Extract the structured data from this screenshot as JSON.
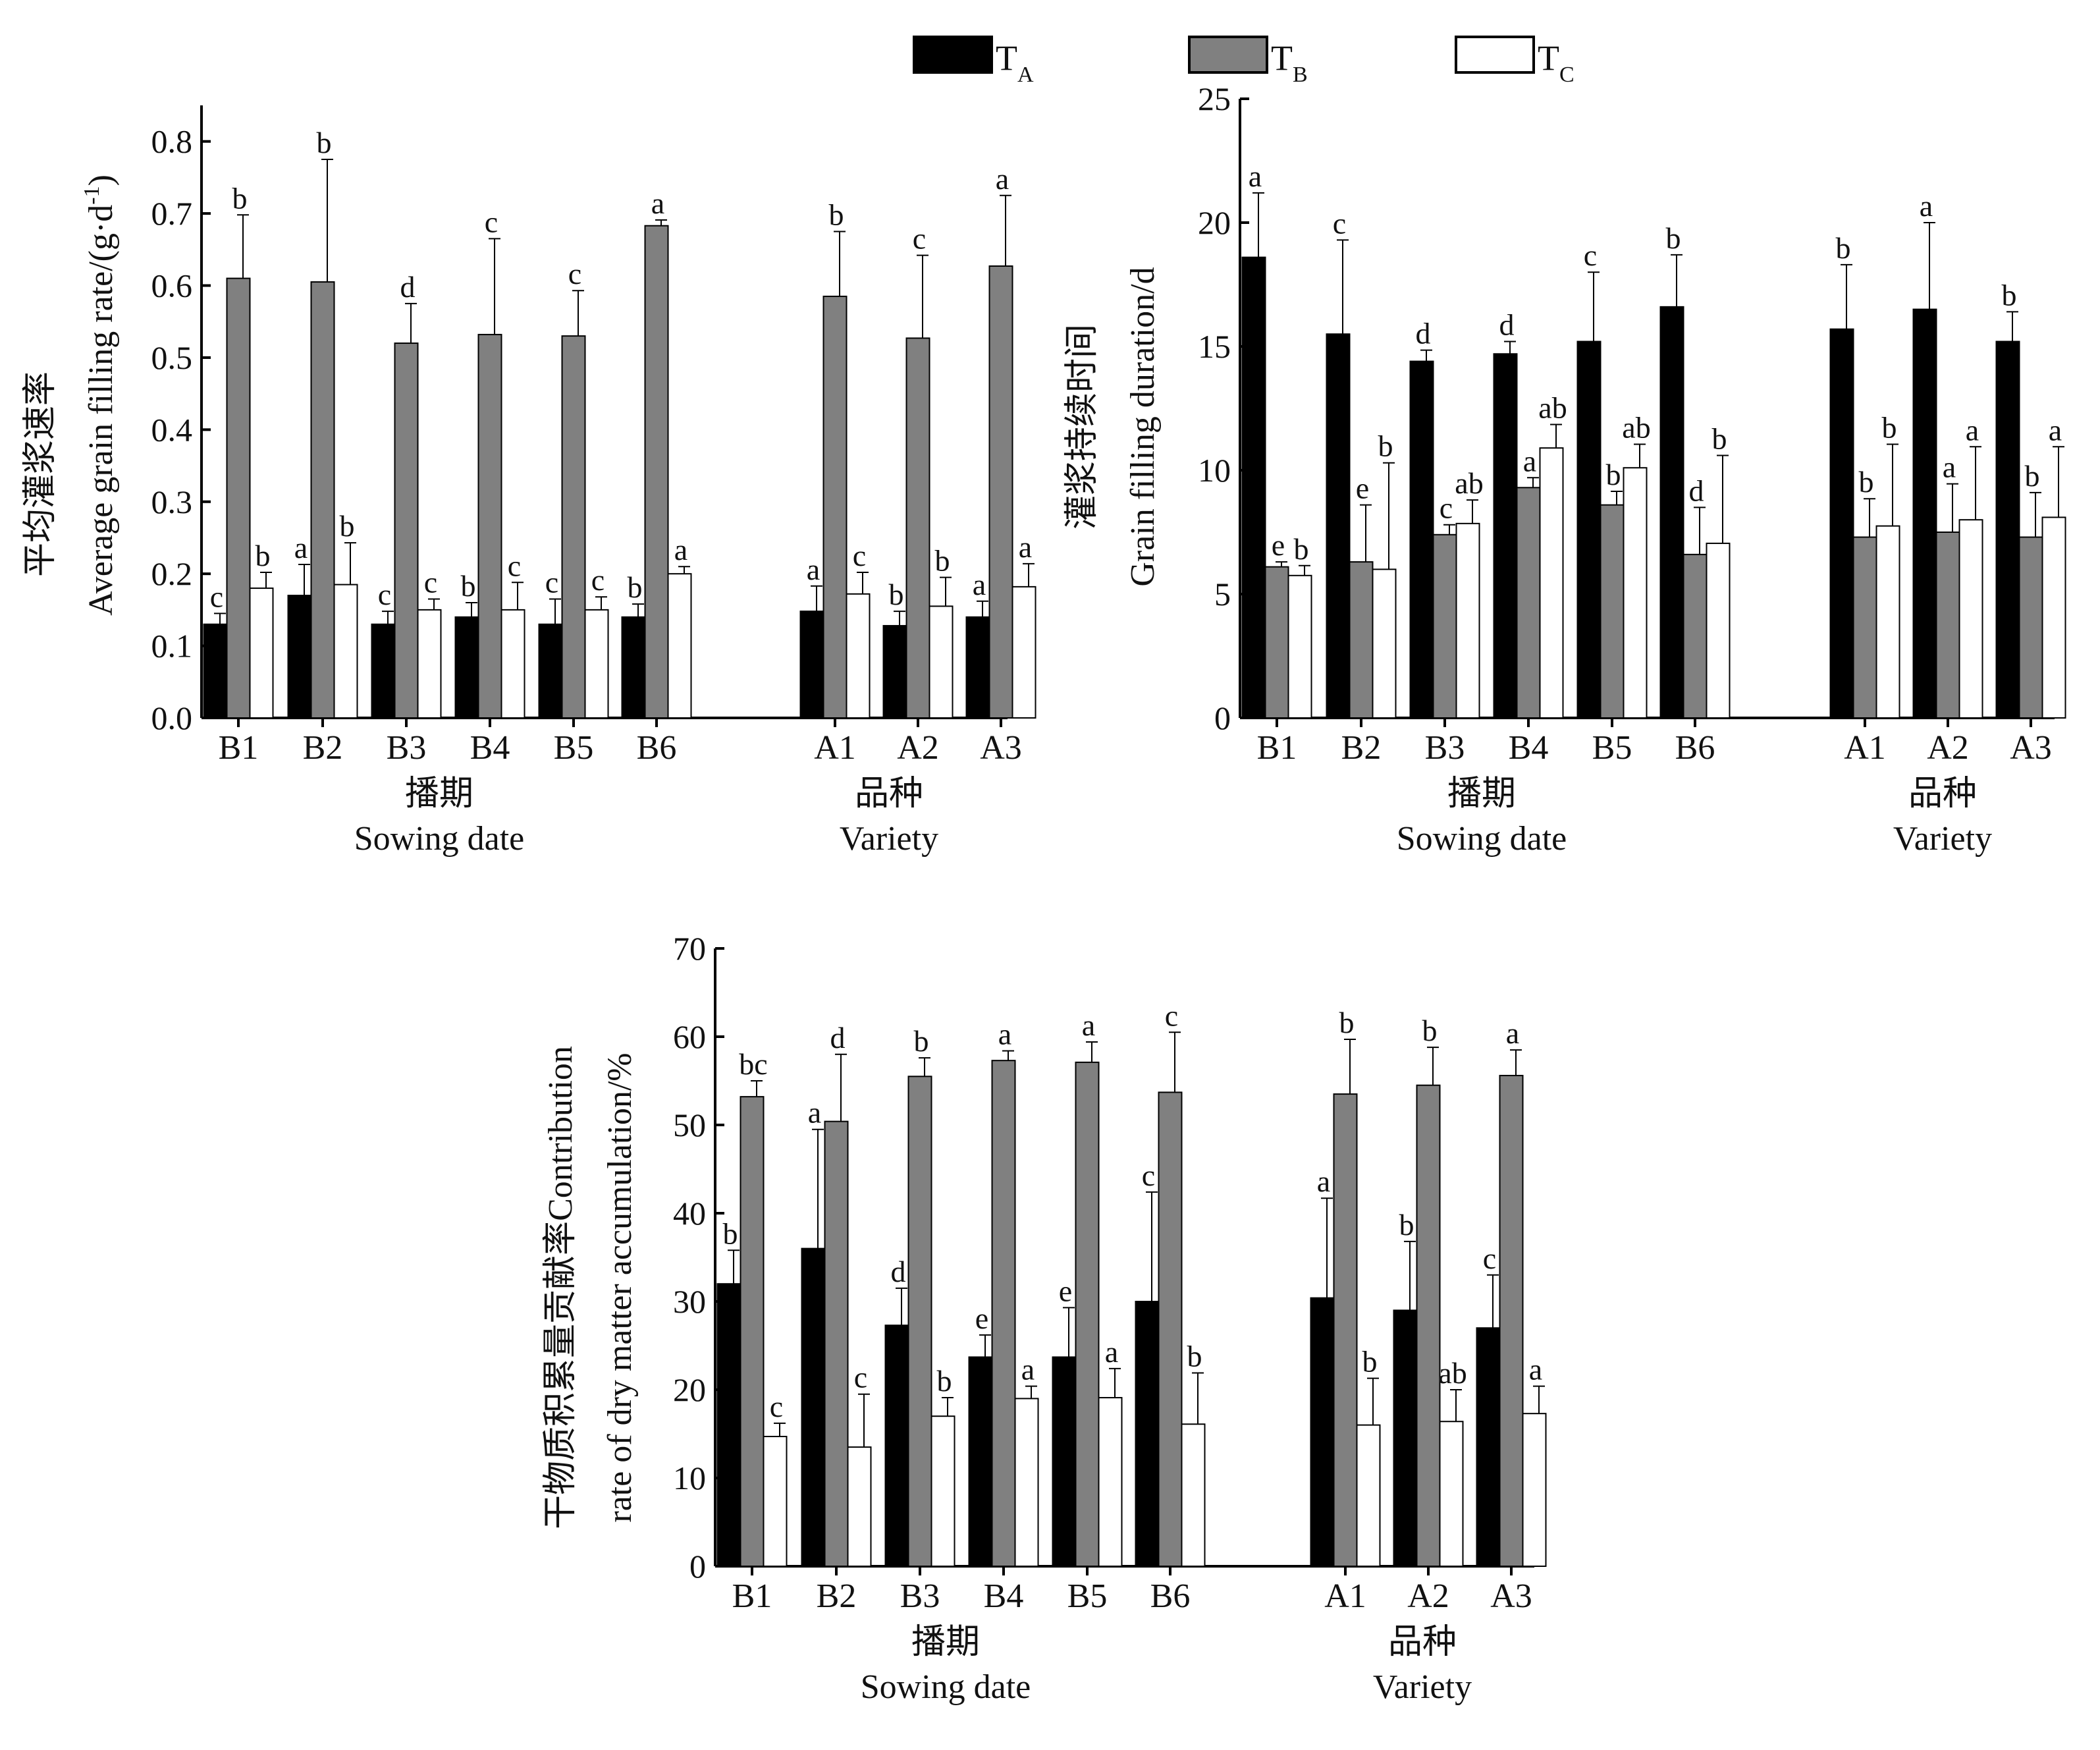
{
  "legend": {
    "items": [
      {
        "key": "TA",
        "label": "T",
        "sub": "A",
        "color": "#000000"
      },
      {
        "key": "TB",
        "label": "T",
        "sub": "B",
        "color": "#808080"
      },
      {
        "key": "TC",
        "label": "T",
        "sub": "C",
        "color": "#ffffff"
      }
    ]
  },
  "chart_data": [
    {
      "type": "bar",
      "ylabel_cn": "平均灌浆速率",
      "ylabel_en": "Average grain filling rate/(g·d",
      "ylabel_sup": "-1",
      "ylabel_close": ")",
      "ylim": [
        0,
        0.85
      ],
      "yticks": [
        "0.0",
        "0.1",
        "0.2",
        "0.3",
        "0.4",
        "0.5",
        "0.6",
        "0.7",
        "0.8"
      ],
      "groups": [
        {
          "cn": "播期",
          "en": "Sowing date",
          "categories": [
            "B1",
            "B2",
            "B3",
            "B4",
            "B5",
            "B6"
          ]
        },
        {
          "cn": "品种",
          "en": "Variety",
          "categories": [
            "A1",
            "A2",
            "A3"
          ]
        }
      ],
      "categories": [
        "B1",
        "B2",
        "B3",
        "B4",
        "B5",
        "B6",
        "A1",
        "A2",
        "A3"
      ],
      "series": [
        {
          "key": "TA",
          "values": [
            0.13,
            0.17,
            0.13,
            0.14,
            0.13,
            0.14,
            0.148,
            0.128,
            0.14
          ],
          "errors": [
            0.015,
            0.043,
            0.018,
            0.02,
            0.035,
            0.018,
            0.035,
            0.02,
            0.022
          ],
          "letters": [
            "c",
            "a",
            "c",
            "b",
            "c",
            "b",
            "a",
            "b",
            "a"
          ]
        },
        {
          "key": "TB",
          "values": [
            0.61,
            0.605,
            0.52,
            0.532,
            0.53,
            0.683,
            0.585,
            0.527,
            0.627
          ],
          "errors": [
            0.088,
            0.17,
            0.055,
            0.133,
            0.063,
            0.008,
            0.09,
            0.115,
            0.098
          ],
          "letters": [
            "b",
            "b",
            "d",
            "c",
            "c",
            "a",
            "b",
            "c",
            "a"
          ]
        },
        {
          "key": "TC",
          "values": [
            0.18,
            0.185,
            0.15,
            0.15,
            0.15,
            0.2,
            0.172,
            0.155,
            0.182
          ],
          "errors": [
            0.022,
            0.058,
            0.015,
            0.038,
            0.018,
            0.01,
            0.03,
            0.04,
            0.032
          ],
          "letters": [
            "b",
            "b",
            "c",
            "c",
            "c",
            "a",
            "c",
            "b",
            "a"
          ]
        }
      ]
    },
    {
      "type": "bar",
      "ylabel_cn": "灌浆持续时间",
      "ylabel_en": "Grain filling duration/d",
      "ylim": [
        0,
        25
      ],
      "yticks": [
        "0",
        "5",
        "10",
        "15",
        "20",
        "25"
      ],
      "groups": [
        {
          "cn": "播期",
          "en": "Sowing date",
          "categories": [
            "B1",
            "B2",
            "B3",
            "B4",
            "B5",
            "B6"
          ]
        },
        {
          "cn": "品种",
          "en": "Variety",
          "categories": [
            "A1",
            "A2",
            "A3"
          ]
        }
      ],
      "categories": [
        "B1",
        "B2",
        "B3",
        "B4",
        "B5",
        "B6",
        "A1",
        "A2",
        "A3"
      ],
      "series": [
        {
          "key": "TA",
          "values": [
            18.6,
            15.5,
            14.4,
            14.7,
            15.2,
            16.6,
            15.7,
            16.5,
            15.2
          ],
          "errors": [
            2.6,
            3.8,
            0.45,
            0.5,
            2.8,
            2.1,
            2.6,
            3.5,
            1.2
          ],
          "letters": [
            "a",
            "c",
            "d",
            "d",
            "c",
            "b",
            "b",
            "a",
            "b"
          ]
        },
        {
          "key": "TB",
          "values": [
            6.1,
            6.3,
            7.4,
            9.3,
            8.6,
            6.6,
            7.3,
            7.5,
            7.3
          ],
          "errors": [
            0.2,
            2.3,
            0.4,
            0.4,
            0.55,
            1.9,
            1.55,
            1.95,
            1.8
          ],
          "letters": [
            "e",
            "e",
            "c",
            "a",
            "b",
            "d",
            "b",
            "a",
            "b"
          ]
        },
        {
          "key": "TC",
          "values": [
            5.75,
            6.0,
            7.85,
            10.9,
            10.1,
            7.05,
            7.75,
            8.0,
            8.1
          ],
          "errors": [
            0.4,
            4.3,
            0.95,
            0.95,
            0.95,
            3.55,
            3.3,
            2.95,
            2.85
          ],
          "letters": [
            "b",
            "b",
            "ab",
            "ab",
            "ab",
            "b",
            "b",
            "a",
            "a"
          ]
        }
      ]
    },
    {
      "type": "bar",
      "ylabel_cn": "干物质积累量贡献率",
      "ylabel_en1": "Contribution",
      "ylabel_en2": "rate of dry matter accumulation/%",
      "ylim": [
        0,
        70
      ],
      "yticks": [
        "0",
        "10",
        "20",
        "30",
        "40",
        "50",
        "60",
        "70"
      ],
      "groups": [
        {
          "cn": "播期",
          "en": "Sowing date",
          "categories": [
            "B1",
            "B2",
            "B3",
            "B4",
            "B5",
            "B6"
          ]
        },
        {
          "cn": "品种",
          "en": "Variety",
          "categories": [
            "A1",
            "A2",
            "A3"
          ]
        }
      ],
      "categories": [
        "B1",
        "B2",
        "B3",
        "B4",
        "B5",
        "B6",
        "A1",
        "A2",
        "A3"
      ],
      "series": [
        {
          "key": "TA",
          "values": [
            32.0,
            36.0,
            27.3,
            23.7,
            23.7,
            30.0,
            30.4,
            29.0,
            27.0
          ],
          "errors": [
            3.8,
            13.5,
            4.2,
            2.5,
            5.6,
            12.4,
            11.3,
            7.8,
            6.0
          ],
          "letters": [
            "b",
            "a",
            "d",
            "e",
            "e",
            "c",
            "a",
            "b",
            "c"
          ]
        },
        {
          "key": "TB",
          "values": [
            53.2,
            50.4,
            55.5,
            57.3,
            57.1,
            53.7,
            53.5,
            54.5,
            55.6
          ],
          "errors": [
            1.8,
            7.6,
            2.1,
            1.1,
            2.3,
            6.8,
            6.2,
            4.3,
            2.9
          ],
          "letters": [
            "bc",
            "d",
            "b",
            "a",
            "a",
            "c",
            "b",
            "b",
            "a"
          ]
        },
        {
          "key": "TC",
          "values": [
            14.7,
            13.5,
            17.0,
            19.0,
            19.1,
            16.1,
            16.0,
            16.4,
            17.3
          ],
          "errors": [
            1.5,
            6.0,
            2.1,
            1.4,
            3.3,
            5.8,
            5.3,
            3.6,
            3.1
          ],
          "letters": [
            "c",
            "c",
            "b",
            "a",
            "a",
            "b",
            "b",
            "ab",
            "a"
          ]
        }
      ]
    }
  ]
}
